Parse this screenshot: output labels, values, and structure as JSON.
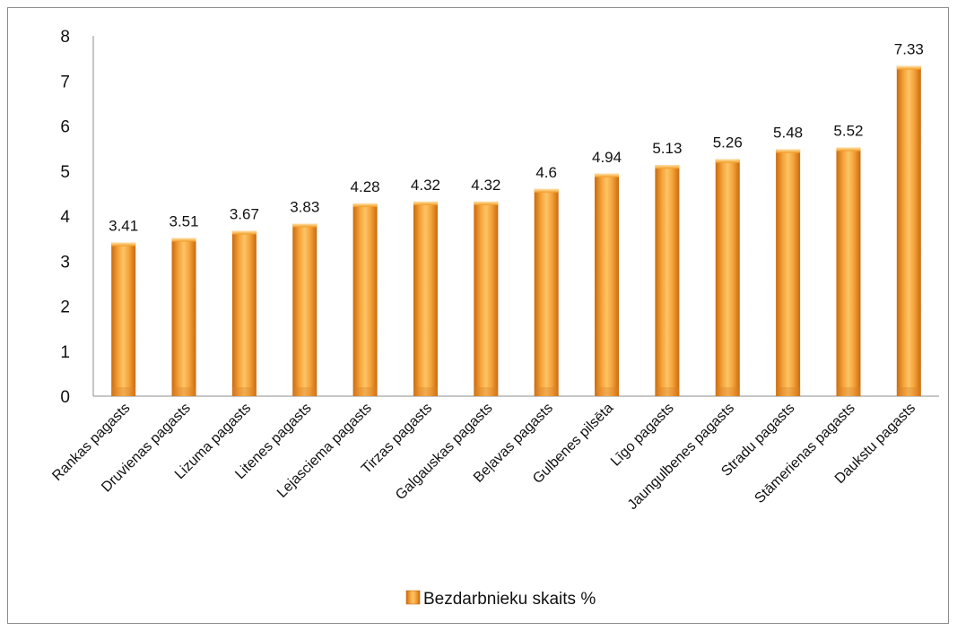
{
  "chart_data": {
    "type": "bar",
    "categories": [
      "Rankas pagasts",
      "Druvienas pagasts",
      "Lizuma pagasts",
      "Litenes pagasts",
      "Lejasciema pagasts",
      "Tirzas pagasts",
      "Galgauskas pagasts",
      "Beļavas pagasts",
      "Gulbenes pilsēta",
      "Līgo pagasts",
      "Jaungulbenes pagasts",
      "Stradu pagasts",
      "Stāmerienas pagasts",
      "Daukstu pagasts"
    ],
    "series": [
      {
        "name": "Bezdarbnieku skaits %",
        "values": [
          3.41,
          3.51,
          3.67,
          3.83,
          4.28,
          4.32,
          4.32,
          4.6,
          4.94,
          5.13,
          5.26,
          5.48,
          5.52,
          7.33
        ],
        "labels": [
          "3.41",
          "3.51",
          "3.67",
          "3.83",
          "4.28",
          "4.32",
          "4.32",
          "4.6",
          "4.94",
          "5.13",
          "5.26",
          "5.48",
          "5.52",
          "7.33"
        ]
      }
    ],
    "yticks": [
      "0",
      "1",
      "2",
      "3",
      "4",
      "5",
      "6",
      "7",
      "8"
    ],
    "ylim": [
      0,
      8
    ],
    "grid": false,
    "legend_position": "bottom",
    "colors": {
      "bar": "#f39a22",
      "bar_dark": "#c96a0e",
      "bar_light": "#fcc466",
      "axis": "#8c8c8c"
    }
  }
}
